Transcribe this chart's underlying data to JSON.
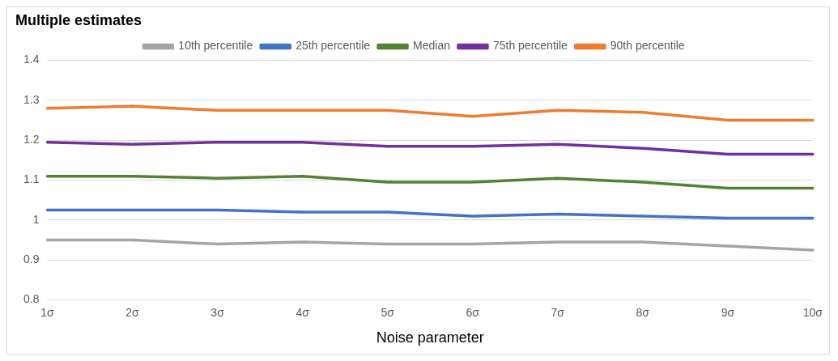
{
  "chart_data": {
    "type": "line",
    "title": "Multiple estimates",
    "xlabel": "Noise parameter",
    "categories": [
      "1σ",
      "2σ",
      "3σ",
      "4σ",
      "5σ",
      "6σ",
      "7σ",
      "8σ",
      "9σ",
      "10σ"
    ],
    "series": [
      {
        "name": "10th percentile",
        "color": "#a5a5a5",
        "values": [
          0.95,
          0.95,
          0.94,
          0.945,
          0.94,
          0.94,
          0.945,
          0.945,
          0.935,
          0.925
        ]
      },
      {
        "name": "25th percentile",
        "color": "#4472c4",
        "values": [
          1.025,
          1.025,
          1.025,
          1.02,
          1.02,
          1.01,
          1.015,
          1.01,
          1.005,
          1.005
        ]
      },
      {
        "name": "Median",
        "color": "#548235",
        "values": [
          1.11,
          1.11,
          1.105,
          1.11,
          1.095,
          1.095,
          1.105,
          1.095,
          1.08,
          1.08
        ]
      },
      {
        "name": "75th percentile",
        "color": "#7030a0",
        "values": [
          1.195,
          1.19,
          1.195,
          1.195,
          1.185,
          1.185,
          1.19,
          1.18,
          1.165,
          1.165
        ]
      },
      {
        "name": "90th percentile",
        "color": "#ed7d31",
        "values": [
          1.28,
          1.285,
          1.275,
          1.275,
          1.275,
          1.26,
          1.275,
          1.27,
          1.25,
          1.25
        ]
      }
    ],
    "ylim": [
      0.8,
      1.4
    ],
    "yticks": [
      0.8,
      0.9,
      1,
      1.1,
      1.2,
      1.3,
      1.4
    ],
    "grid": "y",
    "legend": "top",
    "marker": "none",
    "line_style": "solid"
  }
}
